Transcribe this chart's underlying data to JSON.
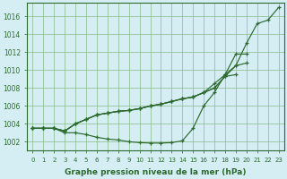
{
  "hours": [
    0,
    1,
    2,
    3,
    4,
    5,
    6,
    7,
    8,
    9,
    10,
    11,
    12,
    13,
    14,
    15,
    16,
    17,
    18,
    19,
    20,
    21,
    22,
    23
  ],
  "curve_main": [
    1003.5,
    1003.5,
    1003.5,
    1003.0,
    1003.0,
    1002.8,
    1002.5,
    1002.3,
    1002.2,
    1002.0,
    1001.9,
    1001.85,
    1001.85,
    1001.9,
    1002.1,
    1003.5,
    1006.0,
    1007.5,
    1009.5,
    1010.5,
    1013.0,
    1015.2,
    1015.6,
    1017.0
  ],
  "curve_a_x": [
    0,
    1,
    2,
    3,
    4,
    5,
    6,
    7,
    8,
    9,
    10,
    11,
    12,
    13,
    14,
    15,
    16,
    17,
    18,
    19
  ],
  "curve_a": [
    1003.5,
    1003.5,
    1003.5,
    1003.2,
    1004.0,
    1004.5,
    1005.0,
    1005.2,
    1005.4,
    1005.5,
    1005.7,
    1006.0,
    1006.2,
    1006.5,
    1006.8,
    1007.0,
    1007.5,
    1008.0,
    1009.3,
    1009.5
  ],
  "curve_b_x": [
    0,
    1,
    2,
    3,
    4,
    5,
    6,
    7,
    8,
    9,
    10,
    11,
    12,
    13,
    14,
    15,
    16,
    17,
    18,
    19,
    20
  ],
  "curve_b": [
    1003.5,
    1003.5,
    1003.5,
    1003.2,
    1004.0,
    1004.5,
    1005.0,
    1005.2,
    1005.4,
    1005.5,
    1005.7,
    1006.0,
    1006.2,
    1006.5,
    1006.8,
    1007.0,
    1007.5,
    1008.0,
    1009.3,
    1010.5,
    1010.8
  ],
  "curve_c_x": [
    0,
    1,
    2,
    3,
    4,
    5,
    6,
    7,
    8,
    9,
    10,
    11,
    12,
    13,
    14,
    15,
    16,
    17,
    18,
    19,
    20
  ],
  "curve_c": [
    1003.5,
    1003.5,
    1003.5,
    1003.2,
    1004.0,
    1004.5,
    1005.0,
    1005.2,
    1005.4,
    1005.5,
    1005.7,
    1006.0,
    1006.2,
    1006.5,
    1006.8,
    1007.0,
    1007.5,
    1008.5,
    1009.5,
    1011.8,
    1011.8
  ],
  "line_color": "#2d6a2d",
  "marker": "+",
  "bg_color": "#d4eef4",
  "grid_color": "#88bb88",
  "ylabel_ticks": [
    1002,
    1004,
    1006,
    1008,
    1010,
    1012,
    1014,
    1016
  ],
  "xlabel": "Graphe pression niveau de la mer (hPa)",
  "ylim": [
    1001.0,
    1017.5
  ],
  "xlim": [
    -0.5,
    23.5
  ]
}
